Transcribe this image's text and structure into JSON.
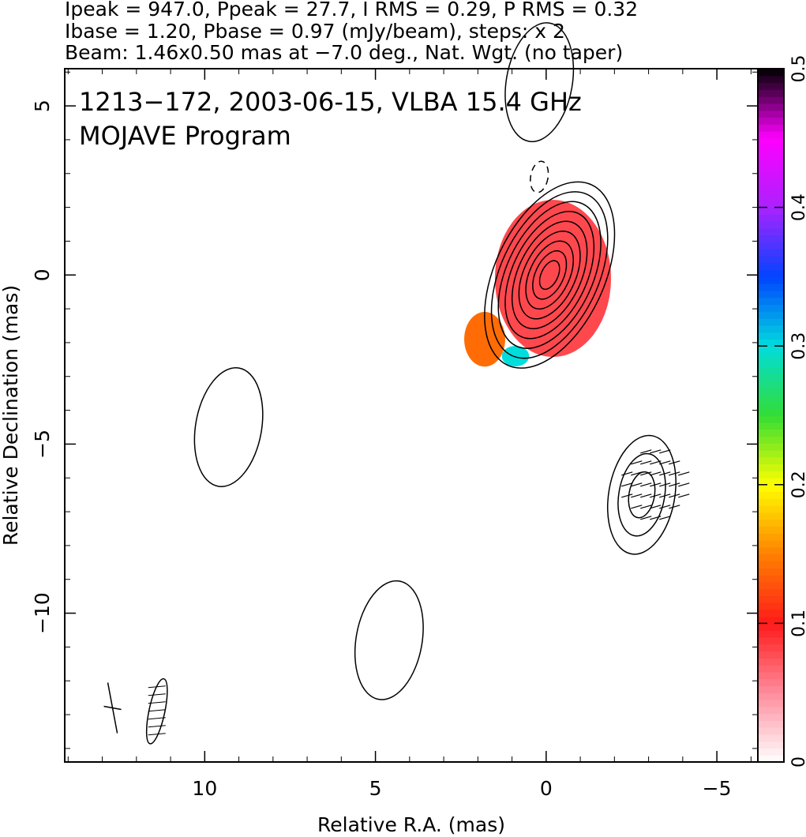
{
  "header": {
    "line1": "Ipeak = 947.0, Ppeak = 27.7, I RMS = 0.29, P RMS = 0.32",
    "line2": "Ibase = 1.20, Pbase = 0.97 (mJy/beam), steps: x 2",
    "line3": "Beam: 1.46x0.50 mas at −7.0 deg., Nat. Wgt. (no taper)"
  },
  "chart_data": {
    "type": "heatmap",
    "title": "1213−172, 2003-06-15, VLBA 15.4 GHz",
    "subtitle": "MOJAVE Program",
    "xlabel": "Relative R.A. (mas)",
    "ylabel": "Relative Declination (mas)",
    "xlim": [
      14.1,
      -6.2
    ],
    "ylim": [
      -14.4,
      6.1
    ],
    "x_ticks": [
      10,
      5,
      0,
      -5
    ],
    "x_tick_labels": [
      "10",
      "5",
      "0",
      "−5"
    ],
    "y_ticks": [
      5,
      0,
      -5,
      -10
    ],
    "y_tick_labels": [
      "5",
      "0",
      "−5",
      "−10"
    ],
    "colorbar": {
      "min": 0,
      "max": 0.5,
      "ticks": [
        0,
        0.1,
        0.2,
        0.3,
        0.4,
        0.5
      ],
      "tick_labels": [
        "0",
        "0.1",
        "0.2",
        "0.3",
        "0.4",
        "0.5"
      ],
      "stops": [
        {
          "v": 0.0,
          "color": "#ffffff"
        },
        {
          "v": 0.05,
          "color": "#ff8c9c"
        },
        {
          "v": 0.1,
          "color": "#ff1a1a"
        },
        {
          "v": 0.15,
          "color": "#ff8000"
        },
        {
          "v": 0.2,
          "color": "#ffff00"
        },
        {
          "v": 0.25,
          "color": "#33dd33"
        },
        {
          "v": 0.3,
          "color": "#00dddd"
        },
        {
          "v": 0.35,
          "color": "#0044ff"
        },
        {
          "v": 0.4,
          "color": "#aa22ff"
        },
        {
          "v": 0.45,
          "color": "#ff00ff"
        },
        {
          "v": 0.5,
          "color": "#000000"
        }
      ]
    },
    "contour_color": "#000000",
    "core": {
      "ra": -0.1,
      "dec": 0.0,
      "levels": 9
    },
    "fractional_polarization_regions": [
      {
        "ra": -0.2,
        "dec": -0.1,
        "r_ra": 1.7,
        "r_dec": 2.3,
        "value": 0.08
      },
      {
        "ra": 1.8,
        "dec": -1.9,
        "r_ra": 0.6,
        "r_dec": 0.8,
        "value": 0.14
      },
      {
        "ra": 0.9,
        "dec": -2.4,
        "r_ra": 0.4,
        "r_dec": 0.3,
        "value": 0.3
      }
    ],
    "features": [
      {
        "ra": -2.8,
        "dec": -6.5,
        "type": "contour",
        "levels": 3
      },
      {
        "ra": -3.2,
        "dec": -6.2,
        "type": "vectors"
      },
      {
        "ra": 9.3,
        "dec": -4.5,
        "type": "contour",
        "levels": 1
      },
      {
        "ra": 4.6,
        "dec": -10.8,
        "type": "contour",
        "levels": 1
      },
      {
        "ra": 0.2,
        "dec": 2.9,
        "type": "dashed"
      },
      {
        "ra": 0.2,
        "dec": 5.7,
        "type": "contour",
        "levels": 1
      }
    ],
    "beam_markers": [
      {
        "ra": 12.7,
        "dec": -12.8,
        "type": "cross"
      },
      {
        "ra": 11.4,
        "dec": -12.9,
        "type": "beam-ellipse"
      }
    ]
  }
}
